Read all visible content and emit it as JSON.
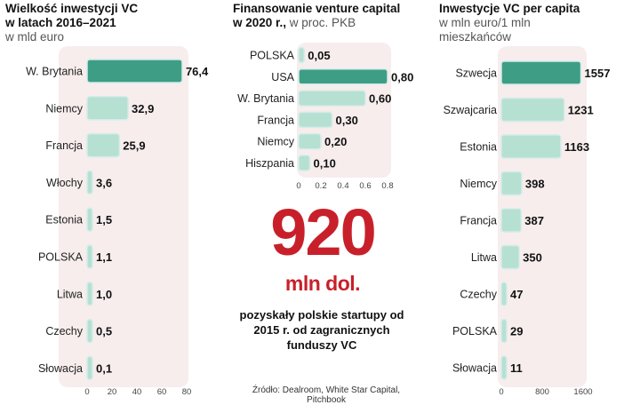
{
  "chart_data": [
    {
      "type": "bar",
      "orientation": "horizontal",
      "title": "Wielkość inwestycji VC w latach 2016–2021",
      "title_line1": "Wielkość inwestycji VC",
      "title_line2": "w latach 2016–2021",
      "subtitle": "w mld euro",
      "categories": [
        "W. Brytania",
        "Niemcy",
        "Francja",
        "Włochy",
        "Estonia",
        "POLSKA",
        "Litwa",
        "Czechy",
        "Słowacja"
      ],
      "values": [
        76.4,
        32.9,
        25.9,
        3.6,
        1.5,
        1.1,
        1.0,
        0.5,
        0.1
      ],
      "value_labels": [
        "76,4",
        "32,9",
        "25,9",
        "3,6",
        "1,5",
        "1,1",
        "1,0",
        "0,5",
        "0,1"
      ],
      "highlight": "W. Brytania",
      "xlim": [
        0,
        80
      ],
      "xticks": [
        "0",
        "20",
        "40",
        "60",
        "80"
      ]
    },
    {
      "type": "bar",
      "orientation": "horizontal",
      "title": "Finansowanie venture capital w 2020 r., w proc. PKB",
      "title_line1": "Finansowanie venture capital",
      "title_line2_bold": "w 2020 r.,",
      "title_line2_rest": " w proc. PKB",
      "categories": [
        "POLSKA",
        "USA",
        "W. Brytania",
        "Francja",
        "Niemcy",
        "Hiszpania"
      ],
      "values": [
        0.05,
        0.8,
        0.6,
        0.3,
        0.2,
        0.1
      ],
      "value_labels": [
        "0,05",
        "0,80",
        "0,60",
        "0,30",
        "0,20",
        "0,10"
      ],
      "highlight": "USA",
      "xlim": [
        0,
        0.8
      ],
      "xticks": [
        "0",
        "0.2",
        "0.4",
        "0.6",
        "0.8"
      ]
    },
    {
      "type": "bar",
      "orientation": "horizontal",
      "title": "Inwestycje VC per capita w mln euro/1 mln mieszkańców",
      "title_line1": "Inwestycje VC per capita",
      "subtitle_line1": "w mln euro/1 mln",
      "subtitle_line2": "mieszkańców",
      "categories": [
        "Szwecja",
        "Szwajcaria",
        "Estonia",
        "Niemcy",
        "Francja",
        "Litwa",
        "Czechy",
        "POLSKA",
        "Słowacja"
      ],
      "values": [
        1557,
        1231,
        1163,
        398,
        387,
        350,
        47,
        29,
        11
      ],
      "value_labels": [
        "1557",
        "1231",
        "1163",
        "398",
        "387",
        "350",
        "47",
        "29",
        "11"
      ],
      "highlight": "Szwecja",
      "xlim": [
        0,
        1600
      ],
      "xticks": [
        "0",
        "800",
        "1600"
      ]
    }
  ],
  "callout": {
    "number": "920",
    "unit": "mln dol.",
    "description": "pozyskały polskie startupy od 2015 r. od zagranicznych funduszy VC"
  },
  "source": "Źródło: Dealroom, White Star Capital, Pitchbook",
  "colors": {
    "highlight": "#3d9e85",
    "bar": "#b6e0d2",
    "bar_stroke": "#d4ecea",
    "panel": "#f7eded",
    "accent_red": "#c8202a"
  }
}
